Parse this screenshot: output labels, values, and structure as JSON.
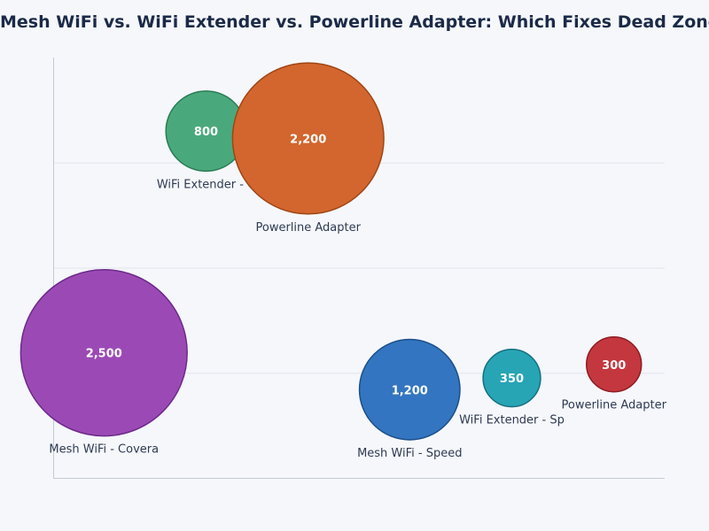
{
  "chart_data": {
    "type": "scatter",
    "variant": "bubble",
    "title": "Mesh WiFi vs. WiFi Extender vs. Powerline Adapter: Which Fixes Dead Zones?",
    "xlabel": "",
    "ylabel": "",
    "xlim": [
      0,
      10
    ],
    "ylim": [
      0,
      4
    ],
    "grid": true,
    "legend": "none",
    "points": [
      {
        "label": "WiFi Extender - C",
        "x": 2.5,
        "y": 3.3,
        "size": 800,
        "size_label": "800",
        "color": "#4aa97c",
        "stroke": "#2a7d55"
      },
      {
        "label": "Powerline Adapter",
        "x": 4.17,
        "y": 3.23,
        "size": 2200,
        "size_label": "2,200",
        "color": "#d2662e",
        "stroke": "#a04515"
      },
      {
        "label": "Mesh WiFi - Covera",
        "x": 0.83,
        "y": 1.19,
        "size": 2500,
        "size_label": "2,500",
        "color": "#9b4ab5",
        "stroke": "#6e2a8a"
      },
      {
        "label": "Mesh WiFi - Speed",
        "x": 5.83,
        "y": 0.84,
        "size": 1200,
        "size_label": "1,200",
        "color": "#3375c0",
        "stroke": "#1d4f8a"
      },
      {
        "label": "WiFi Extender - Sp",
        "x": 7.5,
        "y": 0.95,
        "size": 350,
        "size_label": "350",
        "color": "#27a5b5",
        "stroke": "#16707e"
      },
      {
        "label": "Powerline Adapter",
        "x": 9.17,
        "y": 1.08,
        "size": 300,
        "size_label": "300",
        "color": "#c4373f",
        "stroke": "#8e1c22"
      }
    ]
  }
}
